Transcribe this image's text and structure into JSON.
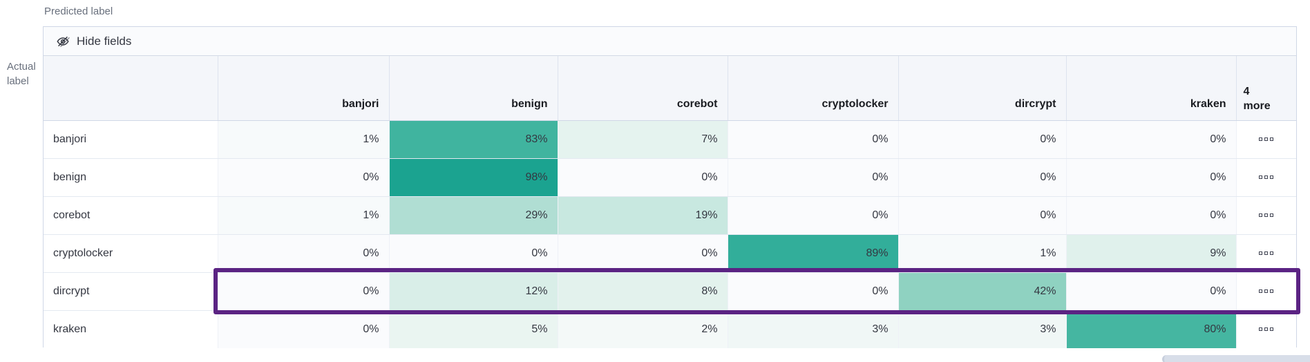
{
  "axis": {
    "predicted": "Predicted label",
    "actual": "Actual label"
  },
  "toolbar": {
    "hide_fields_label": "Hide fields"
  },
  "grid": {
    "columns": [
      "banjori",
      "benign",
      "corebot",
      "cryptolocker",
      "dircrypt",
      "kraken"
    ],
    "more_header": "4 more",
    "value_suffix": "%",
    "rows": [
      {
        "label": "banjori",
        "values": [
          1,
          83,
          7,
          0,
          0,
          0
        ],
        "highlighted": false
      },
      {
        "label": "benign",
        "values": [
          0,
          98,
          0,
          0,
          0,
          0
        ],
        "highlighted": false
      },
      {
        "label": "corebot",
        "values": [
          1,
          29,
          19,
          0,
          0,
          0
        ],
        "highlighted": false
      },
      {
        "label": "cryptolocker",
        "values": [
          0,
          0,
          0,
          89,
          1,
          9
        ],
        "highlighted": false
      },
      {
        "label": "dircrypt",
        "values": [
          0,
          12,
          8,
          0,
          42,
          0
        ],
        "highlighted": true
      },
      {
        "label": "kraken",
        "values": [
          0,
          5,
          2,
          3,
          3,
          80
        ],
        "highlighted": false
      }
    ]
  },
  "icons": {
    "toolbar_icon": "eye-closed-icon",
    "row_actions_icon": "boxes-horizontal-icon"
  },
  "colors": {
    "highlight_border": "#5b2383",
    "header_background": "#f4f6fa",
    "cell_text": "#343741",
    "header_text": "#1a1c21",
    "container_border": "#cfd7e6",
    "heat_scale": [
      [
        0.0,
        "#fafbfd"
      ],
      [
        0.05,
        "#eaf5f1"
      ],
      [
        0.3,
        "#aeddd2"
      ],
      [
        0.5,
        "#7acbb6"
      ],
      [
        0.85,
        "#3cb39e"
      ],
      [
        1.0,
        "#16a08e"
      ]
    ]
  },
  "chart_data": {
    "type": "heatmap",
    "xlabel": "Predicted label",
    "ylabel": "Actual label",
    "x": [
      "banjori",
      "benign",
      "corebot",
      "cryptolocker",
      "dircrypt",
      "kraken"
    ],
    "y": [
      "banjori",
      "benign",
      "corebot",
      "cryptolocker",
      "dircrypt",
      "kraken"
    ],
    "values": [
      [
        1,
        83,
        7,
        0,
        0,
        0
      ],
      [
        0,
        98,
        0,
        0,
        0,
        0
      ],
      [
        1,
        29,
        19,
        0,
        0,
        0
      ],
      [
        0,
        0,
        0,
        89,
        1,
        9
      ],
      [
        0,
        12,
        8,
        0,
        42,
        0
      ],
      [
        0,
        5,
        2,
        3,
        3,
        80
      ]
    ],
    "unit": "%",
    "hidden_columns_indicator": "4 more",
    "legend": "none",
    "highlighted_row": "dircrypt"
  }
}
